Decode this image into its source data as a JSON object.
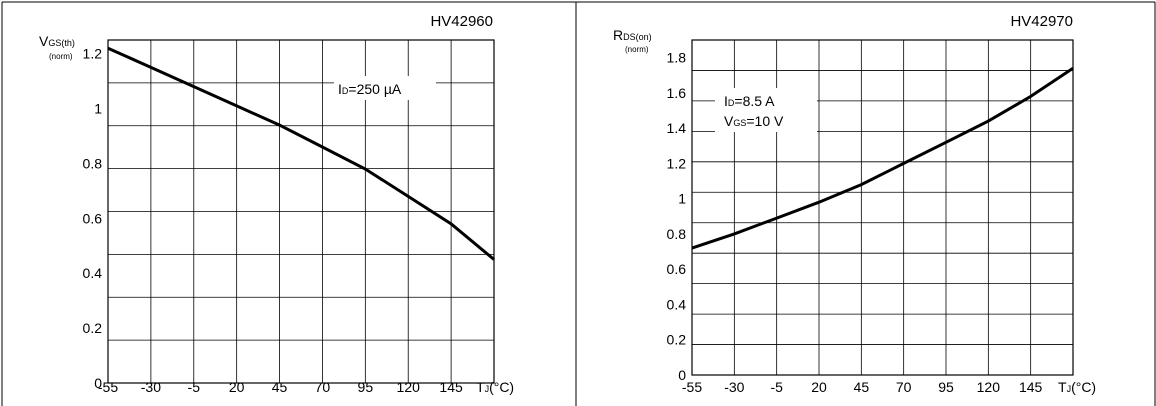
{
  "chart_data": [
    {
      "type": "line",
      "title": "HV42960",
      "ylabel": "V",
      "ylabel_sub": "GS(th)",
      "ylabel_unit": "(norm)",
      "xlabel": "T",
      "xlabel_sub": "J",
      "xlabel_unit": "(°C)",
      "x_ticks": [
        "-55",
        "-30",
        "-5",
        "20",
        "45",
        "70",
        "95",
        "120",
        "145"
      ],
      "y_ticks": [
        "0",
        "0.2",
        "0.4",
        "0.6",
        "0.8",
        "1",
        "1.2"
      ],
      "xlim": [
        -55,
        170
      ],
      "ylim": [
        0,
        1.25
      ],
      "grid": true,
      "annotation": {
        "prefix": "I",
        "sub": "D",
        "text": "=250 µA"
      },
      "series": [
        {
          "x": [
            -55,
            -30,
            -5,
            20,
            45,
            70,
            95,
            120,
            145,
            170
          ],
          "values": [
            1.22,
            1.15,
            1.08,
            1.01,
            0.94,
            0.86,
            0.78,
            0.68,
            0.58,
            0.45
          ]
        }
      ]
    },
    {
      "type": "line",
      "title": "HV42970",
      "ylabel": "R",
      "ylabel_sub": "DS(on)",
      "ylabel_unit": "(norm)",
      "xlabel": "T",
      "xlabel_sub": "J",
      "xlabel_unit": "(°C)",
      "x_ticks": [
        "-55",
        "-30",
        "-5",
        "20",
        "45",
        "70",
        "95",
        "120",
        "145"
      ],
      "y_ticks": [
        "0",
        "0.2",
        "0.4",
        "0.6",
        "0.8",
        "1",
        "1.2",
        "1.4",
        "1.6",
        "1.8"
      ],
      "xlim": [
        -55,
        170
      ],
      "ylim": [
        0,
        1.9
      ],
      "grid": true,
      "annotation_lines": [
        {
          "prefix": "I",
          "sub": "D",
          "text": "=8.5 A"
        },
        {
          "prefix": "V",
          "sub": "GS",
          "text": "=10 V"
        }
      ],
      "series": [
        {
          "x": [
            -55,
            -30,
            -5,
            20,
            45,
            70,
            95,
            120,
            145,
            170
          ],
          "values": [
            0.72,
            0.8,
            0.89,
            0.98,
            1.08,
            1.2,
            1.32,
            1.44,
            1.58,
            1.74
          ]
        }
      ]
    }
  ]
}
